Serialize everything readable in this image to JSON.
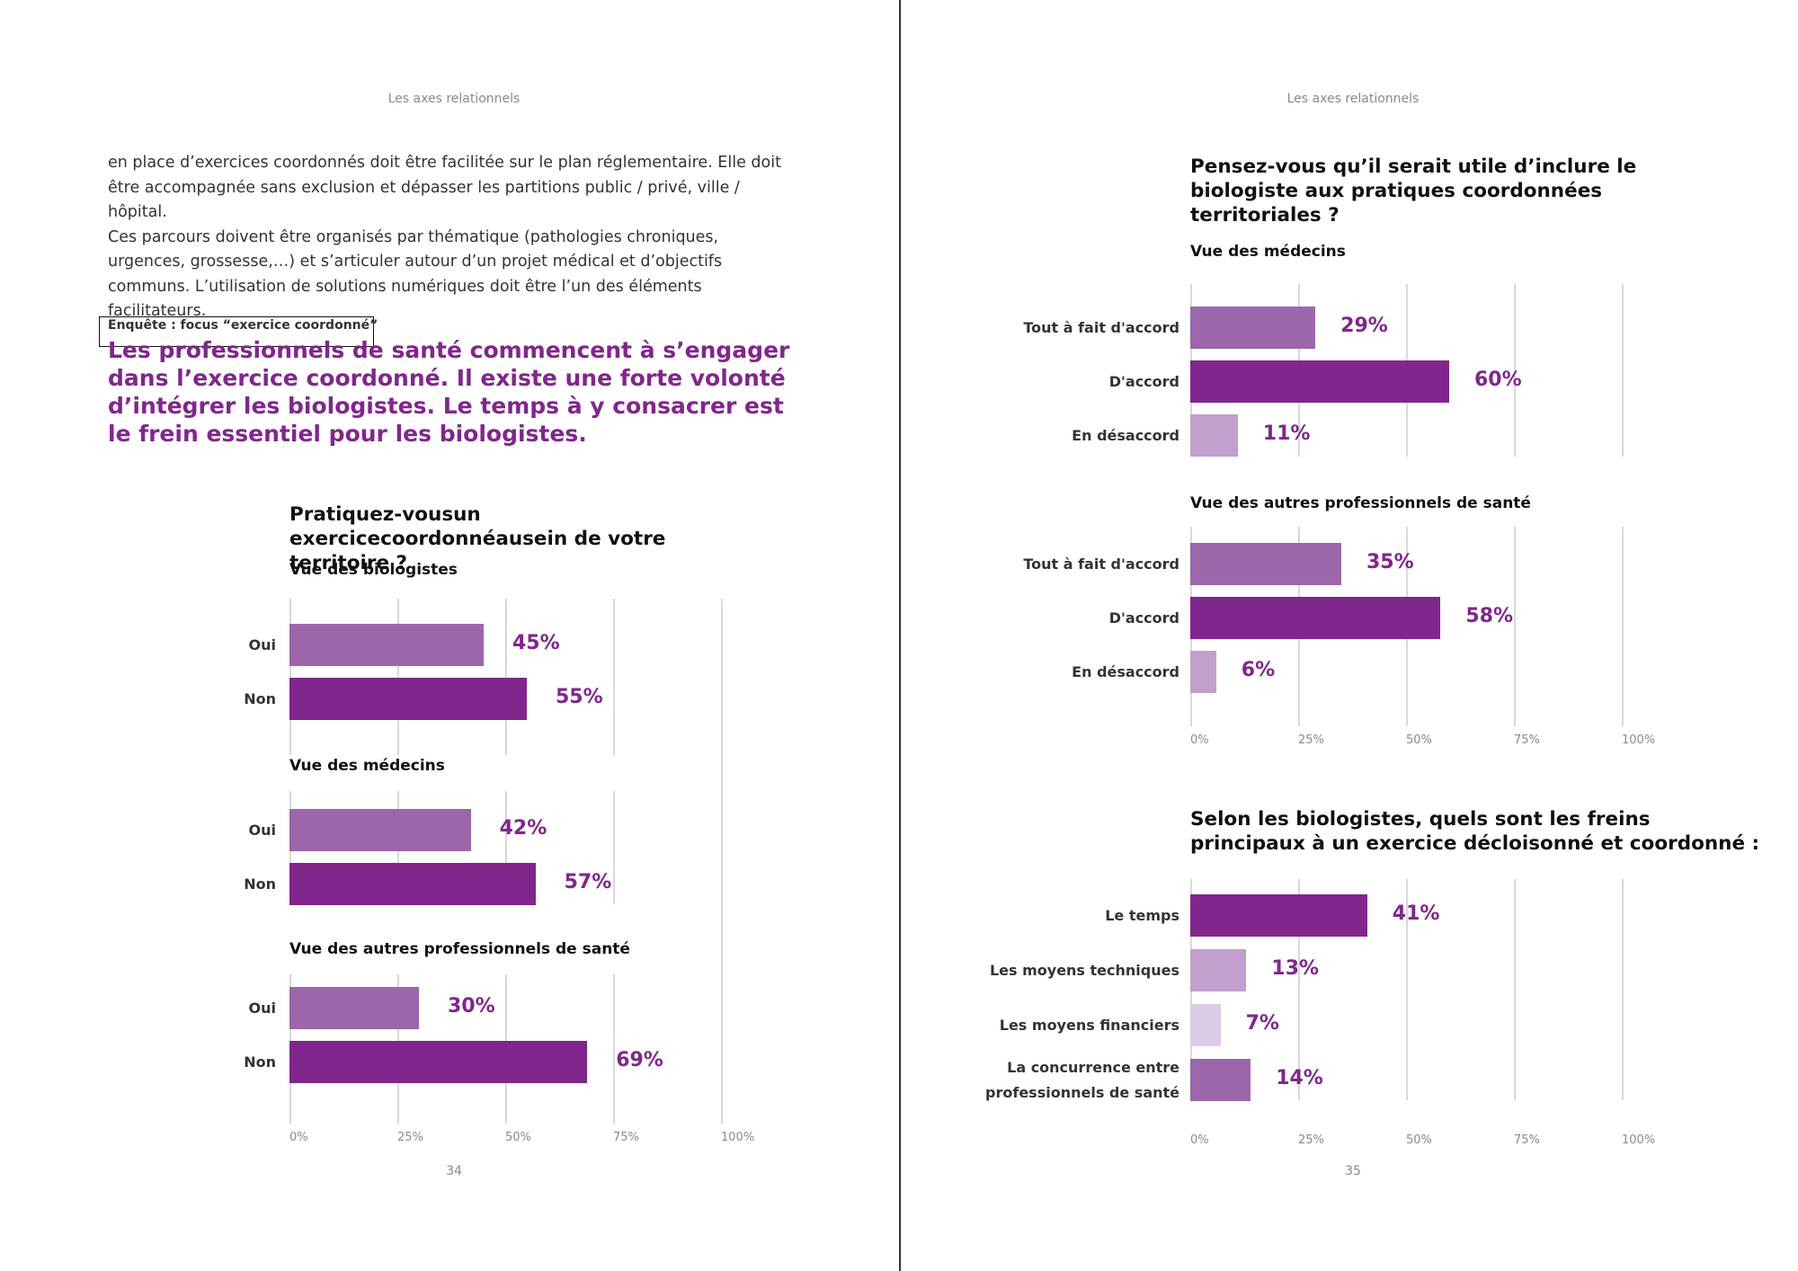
{
  "spread": {
    "left": {
      "running_head": "Les axes relationnels",
      "page_number": "34",
      "body_paragraphs": [
        "en place d’exercices coordonnés doit être facilitée sur le plan réglementaire. Elle doit être accompagnée sans exclusion et dépasser les partitions public / privé, ville / hôpital.",
        "Ces parcours doivent être organisés par thématique (pathologies chroniques, urgences, grossesse,…) et s’articuler autour d’un projet médical et d’objectifs communs. L’utilisation de solutions numériques doit être l’un des éléments facilitateurs."
      ],
      "tag": "Enquête : focus “exercice coordonné”",
      "lead": "Les professionnels de santé commencent à s’engager dans l’exercice coordonné. Il existe une forte volonté d’intégrer les biologistes. Le temps à y consacrer est le frein essentiel pour les biologistes."
    },
    "right": {
      "running_head": "Les axes relationnels",
      "page_number": "35"
    }
  },
  "colors": {
    "accent": "#80268c",
    "medium": "#9b67aa",
    "light": "#c29fcd",
    "lightest": "#dccbe4",
    "grid": "#d9d9d9"
  },
  "axis_ticks": [
    "0%",
    "25%",
    "50%",
    "75%",
    "100%"
  ],
  "chart_data": [
    {
      "type": "bar",
      "orientation": "horizontal",
      "title": "Pratiquez-vousun exercicecoordonnéausein de votre territoire ?",
      "xlim": [
        0,
        100
      ],
      "panels": [
        {
          "subtitle": "Vue des biologistes",
          "categories": [
            "Oui",
            "Non"
          ],
          "values": [
            45,
            55
          ],
          "labels": [
            "45%",
            "55%"
          ]
        },
        {
          "subtitle": "Vue des médecins",
          "categories": [
            "Oui",
            "Non"
          ],
          "values": [
            42,
            57
          ],
          "labels": [
            "42%",
            "57%"
          ]
        },
        {
          "subtitle": "Vue des autres professionnels de santé",
          "categories": [
            "Oui",
            "Non"
          ],
          "values": [
            30,
            69
          ],
          "labels": [
            "30%",
            "69%"
          ]
        }
      ]
    },
    {
      "type": "bar",
      "orientation": "horizontal",
      "title": "Pensez-vous qu’il serait utile d’inclure le biologiste aux pratiques coordonnées territoriales ?",
      "xlim": [
        0,
        100
      ],
      "panels": [
        {
          "subtitle": "Vue des médecins",
          "categories": [
            "Tout à fait d'accord",
            "D'accord",
            "En désaccord"
          ],
          "values": [
            29,
            60,
            11
          ],
          "labels": [
            "29%",
            "60%",
            "11%"
          ]
        },
        {
          "subtitle": "Vue des autres professionnels de santé",
          "categories": [
            "Tout à fait d'accord",
            "D'accord",
            "En désaccord"
          ],
          "values": [
            35,
            58,
            6
          ],
          "labels": [
            "35%",
            "58%",
            "6%"
          ]
        }
      ]
    },
    {
      "type": "bar",
      "orientation": "horizontal",
      "title": "Selon les biologistes, quels sont les freins principaux à un exercice décloisonné et coordonné :",
      "xlim": [
        0,
        100
      ],
      "panels": [
        {
          "subtitle": "",
          "categories": [
            "Le temps",
            "Les moyens techniques",
            "Les moyens financiers",
            "La concurrence entre professionnels de santé"
          ],
          "values": [
            41,
            13,
            7,
            14
          ],
          "labels": [
            "41%",
            "13%",
            "7%",
            "14%"
          ]
        }
      ]
    }
  ]
}
